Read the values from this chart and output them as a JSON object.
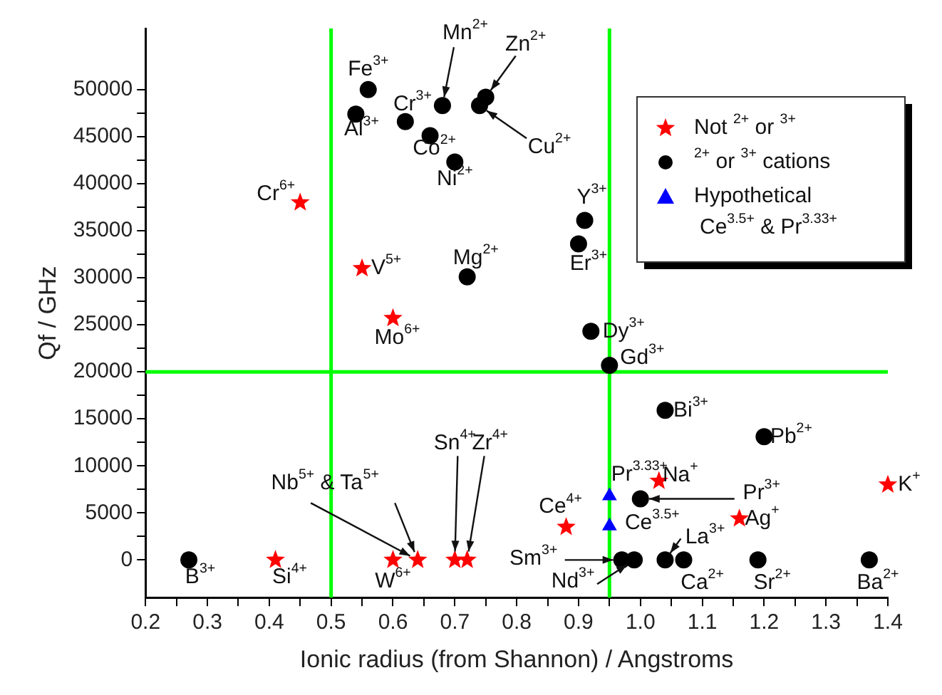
{
  "chart_data": {
    "type": "scatter",
    "xlabel": "Ionic radius (from Shannon) / Angstroms",
    "ylabel": "Qf / GHz",
    "xlim": [
      0.2,
      1.4
    ],
    "xticks": [
      0.2,
      {
        "value": 0.25,
        "label": null
      },
      0.3,
      {
        "value": 0.35,
        "label": null
      },
      0.4,
      {
        "value": 0.45,
        "label": null
      },
      0.5,
      {
        "value": 0.55,
        "label": null
      },
      0.6,
      {
        "value": 0.65,
        "label": null
      },
      0.7,
      {
        "value": 0.75,
        "label": null
      },
      0.8,
      {
        "value": 0.85,
        "label": null
      },
      0.9,
      {
        "value": 0.95,
        "label": null
      },
      {
        "value": 1,
        "label": "1.0"
      },
      {
        "value": 1.05,
        "label": null
      },
      1.1,
      {
        "value": 1.15,
        "label": null
      },
      1.2,
      {
        "value": 1.25,
        "label": null
      },
      1.3,
      {
        "value": 1.35,
        "label": null
      },
      1.4
    ],
    "ylim": [
      -4000,
      56500
    ],
    "yticks": [
      0,
      {
        "value": 2500,
        "label": null
      },
      5000,
      {
        "value": 7500,
        "label": null
      },
      10000,
      {
        "value": 12500,
        "label": null
      },
      15000,
      {
        "value": 17500,
        "label": null
      },
      20000,
      {
        "value": 22500,
        "label": null
      },
      25000,
      {
        "value": 27500,
        "label": null
      },
      30000,
      {
        "value": 32500,
        "label": null
      },
      35000,
      {
        "value": 37500,
        "label": null
      },
      40000,
      {
        "value": 42500,
        "label": null
      },
      45000,
      {
        "value": 47500,
        "label": null
      },
      50000
    ],
    "grid": false,
    "legend": "top right",
    "series": [
      {
        "name": "Not $^{2+}$ or $^{3+}$",
        "color": "#ff0000",
        "marker": "star",
        "x": [
          0.45,
          0.55,
          0.6,
          0.41,
          0.6,
          0.64,
          0.7,
          0.72,
          0.88,
          1.03,
          1.16,
          1.4
        ],
        "values": [
          38000,
          31000,
          25700,
          0,
          0,
          0,
          0,
          0,
          3500,
          8400,
          4400,
          8000
        ]
      },
      {
        "name": "$^{2+}$ or $^{3+}$ cations",
        "color": "#000000",
        "marker": "circle",
        "x": [
          0.27,
          0.56,
          0.54,
          0.62,
          0.68,
          0.75,
          0.74,
          0.66,
          0.7,
          0.72,
          0.91,
          0.9,
          0.92,
          0.95,
          1.04,
          1.2,
          1.0,
          0.97,
          0.99,
          1.04,
          1.07,
          1.19,
          1.37
        ],
        "values": [
          0,
          50000,
          47400,
          46600,
          48300,
          49200,
          48300,
          45100,
          42300,
          30100,
          36100,
          33600,
          24300,
          20700,
          15900,
          13100,
          6500,
          0,
          0,
          0,
          0,
          0,
          0
        ]
      },
      {
        "name": "Hypothetical Ce$^{3.5+}$ & Pr$^{3.33+}$",
        "color": "#0000ff",
        "marker": "triangle",
        "x": [
          0.95,
          0.95
        ],
        "values": [
          6800,
          3600
        ]
      }
    ],
    "ref_lines": [
      {
        "axis": "x",
        "value": 0.5,
        "color": "#00ff00"
      },
      {
        "axis": "x",
        "value": 0.95,
        "color": "#00ff00"
      },
      {
        "axis": "y",
        "value": 20000,
        "color": "#00ff00"
      }
    ],
    "annotations": [
      {
        "text": "Cr$^{6+}$",
        "x": 0.45,
        "y": 38000
      },
      {
        "text": "V$^{5+}$",
        "x": 0.55,
        "y": 31000
      },
      {
        "text": "Mo$^{6+}$",
        "x": 0.6,
        "y": 25700
      },
      {
        "text": "Si$^{4+}$",
        "x": 0.41,
        "y": 0
      },
      {
        "text": "W$^{6+}$",
        "x": 0.6,
        "y": 0
      },
      {
        "text": "Nb$^{5+}$ & Ta$^{5+}$",
        "x": 0.64,
        "y": 0
      },
      {
        "text": "Sn$^{4+}$",
        "x": 0.7,
        "y": 0
      },
      {
        "text": "Zr$^{4+}$",
        "x": 0.72,
        "y": 0
      },
      {
        "text": "Ce$^{4+}$",
        "x": 0.88,
        "y": 3500
      },
      {
        "text": "Na$^{+}$",
        "x": 1.03,
        "y": 8400
      },
      {
        "text": "Ag$^{+}$",
        "x": 1.16,
        "y": 4400
      },
      {
        "text": "K$^{+}$",
        "x": 1.4,
        "y": 8000
      },
      {
        "text": "B$^{3+}$",
        "x": 0.27,
        "y": 0
      },
      {
        "text": "Fe$^{3+}$",
        "x": 0.56,
        "y": 50000
      },
      {
        "text": "Al$^{3+}$",
        "x": 0.54,
        "y": 47400
      },
      {
        "text": "Cr$^{3+}$",
        "x": 0.62,
        "y": 46600
      },
      {
        "text": "Mn$^{2+}$",
        "x": 0.68,
        "y": 48300
      },
      {
        "text": "Zn$^{2+}$",
        "x": 0.75,
        "y": 49200
      },
      {
        "text": "Cu$^{2+}$",
        "x": 0.74,
        "y": 48300
      },
      {
        "text": "Co$^{2+}$",
        "x": 0.66,
        "y": 45100
      },
      {
        "text": "Ni$^{2+}$",
        "x": 0.7,
        "y": 42300
      },
      {
        "text": "Mg$^{2+}$",
        "x": 0.72,
        "y": 30100
      },
      {
        "text": "Y$^{3+}$",
        "x": 0.91,
        "y": 36100
      },
      {
        "text": "Er$^{3+}$",
        "x": 0.9,
        "y": 33600
      },
      {
        "text": "Dy$^{3+}$",
        "x": 0.92,
        "y": 24300
      },
      {
        "text": "Gd$^{3+}$",
        "x": 0.95,
        "y": 20700
      },
      {
        "text": "Bi$^{3+}$",
        "x": 1.04,
        "y": 15900
      },
      {
        "text": "Pb$^{2+}$",
        "x": 1.2,
        "y": 13100
      },
      {
        "text": "Pr$^{3+}$",
        "x": 1.0,
        "y": 6500
      },
      {
        "text": "Sm$^{3+}$",
        "x": 0.97,
        "y": 0
      },
      {
        "text": "Nd$^{3+}$",
        "x": 0.99,
        "y": 0
      },
      {
        "text": "La$^{3+}$",
        "x": 1.04,
        "y": 0
      },
      {
        "text": "Ca$^{2+}$",
        "x": 1.07,
        "y": 0
      },
      {
        "text": "Sr$^{2+}$",
        "x": 1.19,
        "y": 0
      },
      {
        "text": "Ba$^{2+}$",
        "x": 1.37,
        "y": 0
      },
      {
        "text": "Pr$^{3.33+}$",
        "x": 0.95,
        "y": 6800
      },
      {
        "text": "Ce$^{3.5+}$",
        "x": 0.95,
        "y": 3600
      }
    ]
  }
}
